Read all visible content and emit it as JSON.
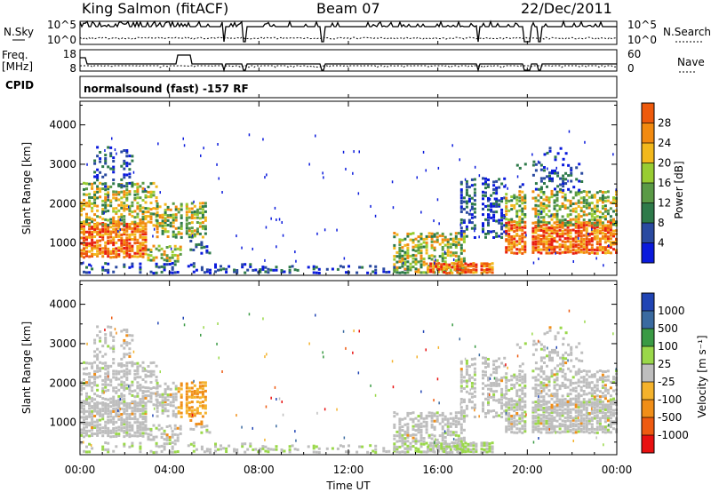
{
  "header": {
    "station": "King Salmon (fitACF)",
    "beam": "Beam 07",
    "date": "22/Dec/2011"
  },
  "nsky_panel": {
    "left_label": "N.Sky",
    "left_ticks": [
      "10^5",
      "10^0"
    ],
    "right_ticks": [
      "10^5",
      "10^0"
    ],
    "right_label": "N.Search"
  },
  "freq_panel": {
    "left_label_1": "Freq.",
    "left_label_2": "[MHz]",
    "left_ticks": [
      "18",
      "8"
    ],
    "right_ticks": [
      "60",
      "0"
    ],
    "right_label": "Nave"
  },
  "cpid": {
    "label": "CPID",
    "text": "normalsound (fast) -157 RF"
  },
  "colors": {
    "power": [
      "#0a1adc",
      "#2a4aa0",
      "#2e7a4a",
      "#5a9a46",
      "#98cc32",
      "#f2b81c",
      "#f28a10",
      "#ee5a0c",
      "#e81e10"
    ],
    "velocity": [
      "#e81010",
      "#ee5a10",
      "#f08e18",
      "#f4b22c",
      "#bebebe",
      "#9ad84a",
      "#3a9a44",
      "#3a6aa0",
      "#2044b4"
    ],
    "grey": "#bebebe"
  },
  "chart_data": [
    {
      "type": "heatmap",
      "name": "power",
      "ylabel": "Slant Range [km]",
      "yticks": [
        "1000",
        "2000",
        "3000",
        "4000"
      ],
      "ylim": [
        180,
        4600
      ],
      "xlim_hours": [
        0,
        24
      ],
      "colorbar_label": "Power [dB]",
      "colorbar_ticks": [
        "4",
        "8",
        "12",
        "16",
        "20",
        "24",
        "28"
      ],
      "colorbar_range": [
        0,
        32
      ]
    },
    {
      "type": "heatmap",
      "name": "velocity",
      "ylabel": "Slant Range [km]",
      "yticks": [
        "1000",
        "2000",
        "3000",
        "4000"
      ],
      "ylim": [
        180,
        4600
      ],
      "xlim_hours": [
        0,
        24
      ],
      "colorbar_label": "Velocity [m s⁻¹]",
      "colorbar_ticks": [
        "-1000",
        "-500",
        "-100",
        "-25",
        "25",
        "100",
        "500",
        "1000"
      ]
    }
  ],
  "xaxis": {
    "ticks": [
      "00:00",
      "04:00",
      "08:00",
      "12:00",
      "16:00",
      "20:00",
      "00:00"
    ],
    "label": "Time UT"
  }
}
